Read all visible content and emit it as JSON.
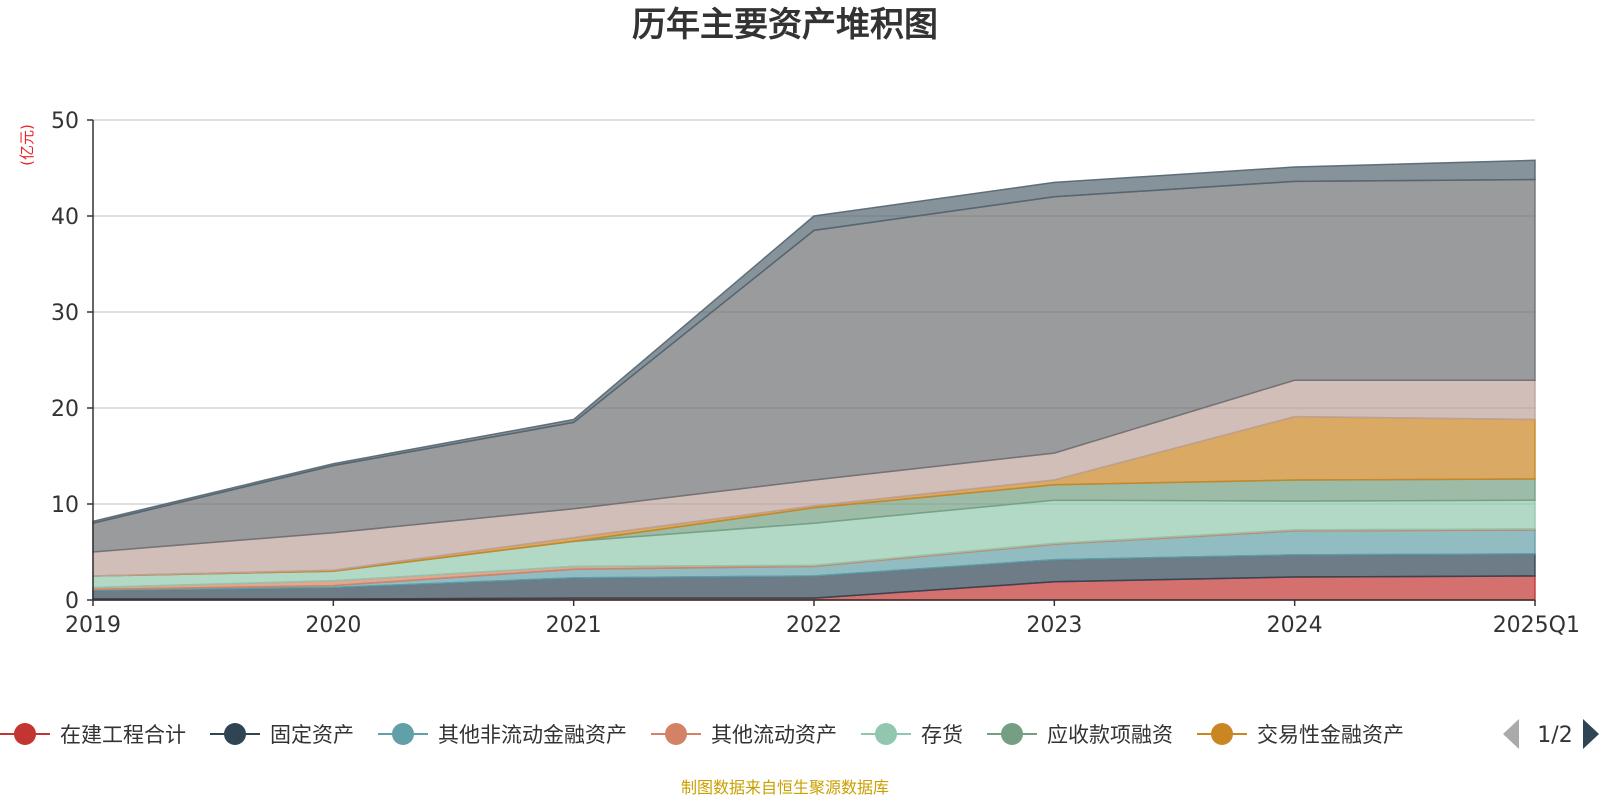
{
  "chart_data": {
    "type": "area",
    "stacked": true,
    "title": "历年主要资产堆积图",
    "ylabel": "(亿元)",
    "xlabel": "",
    "ylim": [
      0,
      50
    ],
    "yticks": [
      0,
      10,
      20,
      30,
      40,
      50
    ],
    "grid": true,
    "categories": [
      "2019",
      "2020",
      "2021",
      "2022",
      "2023",
      "2024",
      "2025Q1"
    ],
    "series": [
      {
        "name": "在建工程合计",
        "color": "#c23531",
        "values": [
          0.1,
          0.1,
          0.2,
          0.2,
          1.9,
          2.4,
          2.5
        ]
      },
      {
        "name": "固定资产",
        "color": "#2f4554",
        "values": [
          0.9,
          1.2,
          2.1,
          2.3,
          2.3,
          2.3,
          2.3
        ]
      },
      {
        "name": "其他非流动金融资产",
        "color": "#61a0a8",
        "values": [
          0.1,
          0.2,
          0.9,
          1.0,
          1.6,
          2.5,
          2.5
        ]
      },
      {
        "name": "其他流动资产",
        "color": "#d48265",
        "values": [
          0.2,
          0.5,
          0.3,
          0.1,
          0.1,
          0.1,
          0.1
        ]
      },
      {
        "name": "存货",
        "color": "#91c7ae",
        "values": [
          1.2,
          1.0,
          2.6,
          4.4,
          4.5,
          3.0,
          3.0
        ]
      },
      {
        "name": "应收款项融资",
        "color": "#749f83",
        "values": [
          0.0,
          0.0,
          0.0,
          1.6,
          1.6,
          2.2,
          2.2
        ]
      },
      {
        "name": "交易性金融资产",
        "color": "#ca8622",
        "values": [
          0.0,
          0.1,
          0.4,
          0.2,
          0.5,
          6.6,
          6.2
        ]
      },
      {
        "name": "",
        "color": "#bda29a",
        "values": [
          2.5,
          3.9,
          3.0,
          2.7,
          2.8,
          3.8,
          4.1
        ]
      },
      {
        "name": "",
        "color": "#6e7074",
        "values": [
          3.0,
          7.0,
          9.0,
          26.0,
          26.7,
          20.7,
          20.9
        ]
      },
      {
        "name": "",
        "color": "#546570",
        "values": [
          0.2,
          0.2,
          0.3,
          1.5,
          1.5,
          1.5,
          2.0
        ]
      }
    ],
    "legend": {
      "position": "bottom",
      "page": "1/2"
    }
  },
  "footer": {
    "source": "制图数据来自恒生聚源数据库"
  },
  "colors": {
    "grid": "#cccccc",
    "axis": "#333333"
  }
}
